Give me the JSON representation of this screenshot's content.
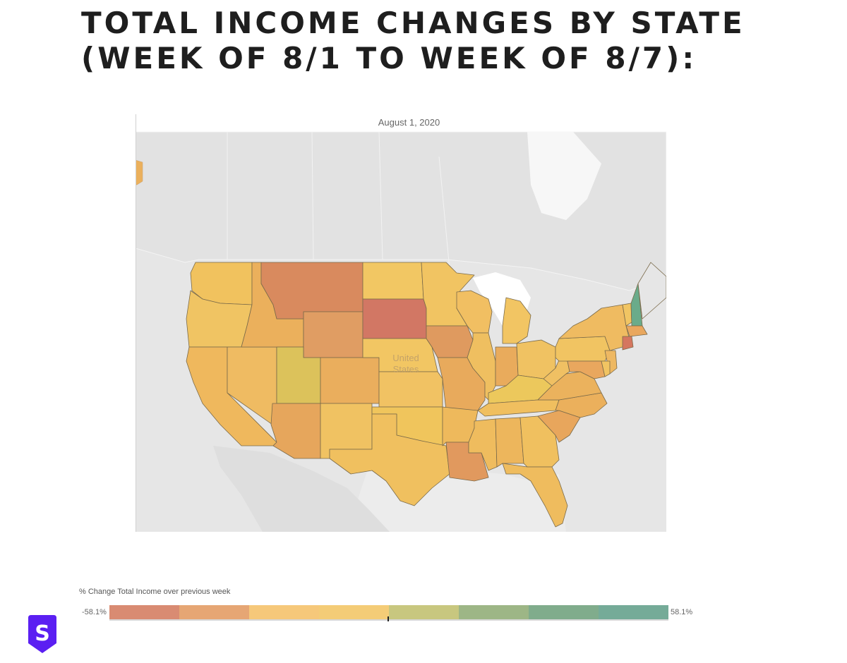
{
  "title": {
    "line1": "TOTAL INCOME CHANGES BY STATE",
    "line2": "(WEEK OF 8/1 TO WEEK OF 8/7):"
  },
  "map": {
    "caption": "August 1, 2020",
    "country_label_line1": "United",
    "country_label_line2": "States",
    "colors": {
      "background": "#e6e6e6",
      "land_other": "#d9d9d9",
      "water": "#ffffff",
      "border": "#7a6a4a"
    },
    "states": [
      {
        "name": "Washington",
        "color": "#f1c25e"
      },
      {
        "name": "Oregon",
        "color": "#f0c463"
      },
      {
        "name": "California",
        "color": "#efb85d"
      },
      {
        "name": "Nevada",
        "color": "#efbb62"
      },
      {
        "name": "Idaho",
        "color": "#ebb05c"
      },
      {
        "name": "Montana",
        "color": "#d98a5e"
      },
      {
        "name": "Wyoming",
        "color": "#e09d63"
      },
      {
        "name": "Utah",
        "color": "#dcc25b"
      },
      {
        "name": "Arizona",
        "color": "#e6a65c"
      },
      {
        "name": "Colorado",
        "color": "#eaae5d"
      },
      {
        "name": "New Mexico",
        "color": "#f0c262"
      },
      {
        "name": "North Dakota",
        "color": "#f2c763"
      },
      {
        "name": "South Dakota",
        "color": "#d27764"
      },
      {
        "name": "Nebraska",
        "color": "#f2c663"
      },
      {
        "name": "Kansas",
        "color": "#f1c263"
      },
      {
        "name": "Oklahoma",
        "color": "#f0c55c"
      },
      {
        "name": "Texas",
        "color": "#f0c05f"
      },
      {
        "name": "Minnesota",
        "color": "#f1c462"
      },
      {
        "name": "Iowa",
        "color": "#df9a5f"
      },
      {
        "name": "Missouri",
        "color": "#e8aa5c"
      },
      {
        "name": "Arkansas",
        "color": "#eeb95c"
      },
      {
        "name": "Louisiana",
        "color": "#e1995e"
      },
      {
        "name": "Wisconsin",
        "color": "#f1bf62"
      },
      {
        "name": "Illinois",
        "color": "#efbf60"
      },
      {
        "name": "Michigan",
        "color": "#f2c563"
      },
      {
        "name": "Indiana",
        "color": "#e9ab5c"
      },
      {
        "name": "Ohio",
        "color": "#f0c262"
      },
      {
        "name": "Kentucky",
        "color": "#ecc85c"
      },
      {
        "name": "Tennessee",
        "color": "#f0bf5f"
      },
      {
        "name": "Mississippi",
        "color": "#efbc5e"
      },
      {
        "name": "Alabama",
        "color": "#edb65c"
      },
      {
        "name": "Georgia",
        "color": "#f0c05f"
      },
      {
        "name": "Florida",
        "color": "#efbc5e"
      },
      {
        "name": "South Carolina",
        "color": "#e8a65c"
      },
      {
        "name": "North Carolina",
        "color": "#ebb05c"
      },
      {
        "name": "Virginia",
        "color": "#ebb25d"
      },
      {
        "name": "West Virginia",
        "color": "#f0c063"
      },
      {
        "name": "Pennsylvania",
        "color": "#f1c462"
      },
      {
        "name": "New York",
        "color": "#efbb61"
      },
      {
        "name": "Vermont",
        "color": "#f1c563"
      },
      {
        "name": "New Hampshire",
        "color": "#6aab8a"
      },
      {
        "name": "Maine",
        "color": "#e6e6e6"
      },
      {
        "name": "Massachusetts",
        "color": "#e9a75e"
      },
      {
        "name": "Connecticut",
        "color": "#d5765f"
      },
      {
        "name": "New Jersey",
        "color": "#eeb862"
      },
      {
        "name": "Maryland",
        "color": "#e9a75e"
      },
      {
        "name": "Delaware",
        "color": "#f1c462"
      }
    ]
  },
  "legend": {
    "title": "% Change Total Income over previous week",
    "min_label": "-58.1%",
    "max_label": "58.1%",
    "min_value": -58.1,
    "max_value": 58.1,
    "colors": [
      "#d98b72",
      "#e6a674",
      "#f6c87a",
      "#f4cc77",
      "#c8c77f",
      "#9db686",
      "#80ac8c",
      "#75ab98"
    ]
  },
  "logo": {
    "letter": "S",
    "color": "#5b1ff2"
  }
}
